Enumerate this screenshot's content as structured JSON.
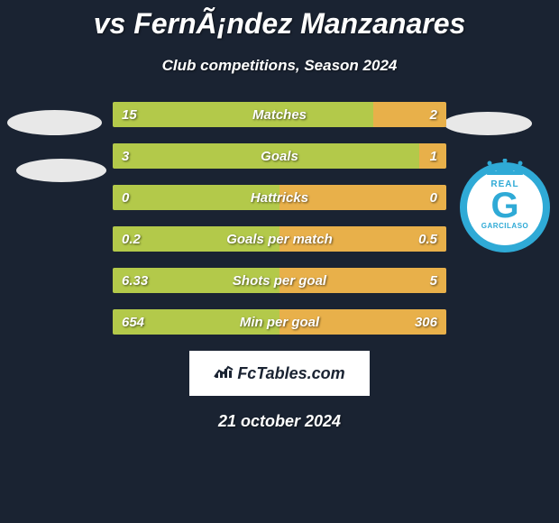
{
  "title": "vs FernÃ¡ndez Manzanares",
  "subtitle": "Club competitions, Season 2024",
  "date": "21 october 2024",
  "colors": {
    "bg": "#1a2332",
    "left_bar": "#b3c94a",
    "right_bar": "#e8b04a",
    "badge_border": "#2faad6",
    "text": "#ffffff",
    "ellipse": "#e8e8e8",
    "box_bg": "#ffffff"
  },
  "fctables": {
    "label": "FcTables.com"
  },
  "bars": [
    {
      "label": "Matches",
      "left_val": "15",
      "right_val": "2",
      "left_pct": 78,
      "right_pct": 22
    },
    {
      "label": "Goals",
      "left_val": "3",
      "right_val": "1",
      "left_pct": 92,
      "right_pct": 8
    },
    {
      "label": "Hattricks",
      "left_val": "0",
      "right_val": "0",
      "left_pct": 50,
      "right_pct": 50
    },
    {
      "label": "Goals per match",
      "left_val": "0.2",
      "right_val": "0.5",
      "left_pct": 50,
      "right_pct": 50
    },
    {
      "label": "Shots per goal",
      "left_val": "6.33",
      "right_val": "5",
      "left_pct": 50,
      "right_pct": 50
    },
    {
      "label": "Min per goal",
      "left_val": "654",
      "right_val": "306",
      "left_pct": 50,
      "right_pct": 50
    }
  ],
  "badge": {
    "top": "REAL",
    "letter": "G",
    "bottom": "GARCILASO"
  }
}
